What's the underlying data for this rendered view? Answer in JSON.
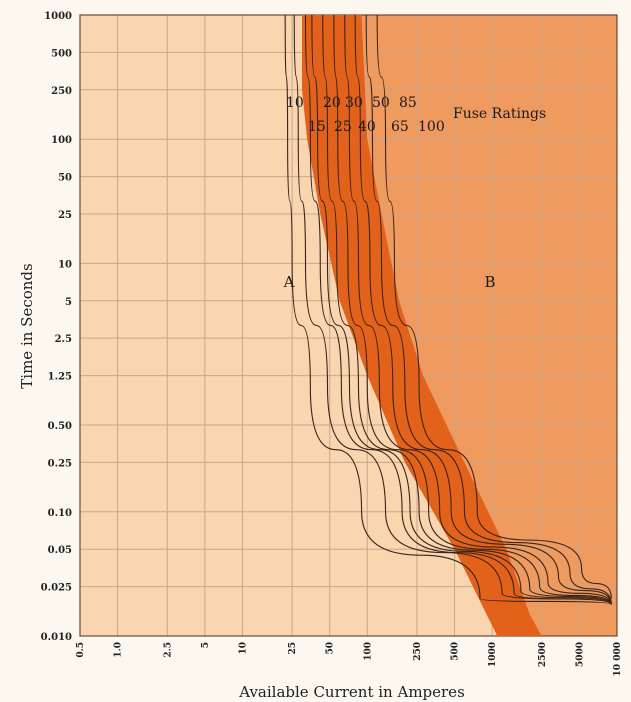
{
  "chart_data": {
    "type": "line",
    "title": "",
    "xlabel": "Available Current in Amperes",
    "ylabel": "Time in Seconds",
    "x_scale": "log",
    "y_scale": "log",
    "xlim": [
      0.5,
      10000
    ],
    "ylim": [
      0.01,
      1000
    ],
    "grid": true,
    "x_ticks": [
      {
        "value": 0.5,
        "label": "0.5"
      },
      {
        "value": 1,
        "label": "1.0"
      },
      {
        "value": 2.5,
        "label": "2.5"
      },
      {
        "value": 5,
        "label": "5"
      },
      {
        "value": 10,
        "label": "10"
      },
      {
        "value": 25,
        "label": "25"
      },
      {
        "value": 50,
        "label": "50"
      },
      {
        "value": 100,
        "label": "100"
      },
      {
        "value": 250,
        "label": "250"
      },
      {
        "value": 500,
        "label": "500"
      },
      {
        "value": 1000,
        "label": "1000"
      },
      {
        "value": 2500,
        "label": "2500"
      },
      {
        "value": 5000,
        "label": "5000"
      },
      {
        "value": 10000,
        "label": "10 000"
      }
    ],
    "y_ticks": [
      {
        "value": 1000,
        "label": "1000"
      },
      {
        "value": 500,
        "label": "500"
      },
      {
        "value": 250,
        "label": "250"
      },
      {
        "value": 100,
        "label": "100"
      },
      {
        "value": 50,
        "label": "50"
      },
      {
        "value": 25,
        "label": "25"
      },
      {
        "value": 10,
        "label": "10"
      },
      {
        "value": 5,
        "label": "5"
      },
      {
        "value": 2.5,
        "label": "2.5"
      },
      {
        "value": 1.25,
        "label": "1.25"
      },
      {
        "value": 0.5,
        "label": "0.50"
      },
      {
        "value": 0.25,
        "label": "0.25"
      },
      {
        "value": 0.1,
        "label": "0.10"
      },
      {
        "value": 0.05,
        "label": "0.05"
      },
      {
        "value": 0.025,
        "label": "0.025"
      },
      {
        "value": 0.01,
        "label": "0.010"
      }
    ],
    "region_labels": [
      "A",
      "B"
    ],
    "legend_title": "Fuse Ratings",
    "rating_labels_top": [
      "10",
      "20",
      "30",
      "50",
      "85"
    ],
    "rating_labels_bottom": [
      "15",
      "25",
      "40",
      "65",
      "100"
    ],
    "series": [
      {
        "rating": "10",
        "points": [
          [
            22,
            1000
          ],
          [
            23,
            100
          ],
          [
            25,
            10
          ],
          [
            35,
            1
          ],
          [
            90,
            0.1
          ],
          [
            800,
            0.02
          ],
          [
            9000,
            0.018
          ]
        ]
      },
      {
        "rating": "15",
        "points": [
          [
            26,
            1000
          ],
          [
            28,
            100
          ],
          [
            32,
            10
          ],
          [
            48,
            1
          ],
          [
            140,
            0.1
          ],
          [
            1200,
            0.022
          ],
          [
            9000,
            0.018
          ]
        ]
      },
      {
        "rating": "20",
        "points": [
          [
            32,
            1000
          ],
          [
            35,
            100
          ],
          [
            42,
            10
          ],
          [
            62,
            1
          ],
          [
            190,
            0.1
          ],
          [
            1500,
            0.022
          ],
          [
            9000,
            0.018
          ]
        ]
      },
      {
        "rating": "25",
        "points": [
          [
            36,
            1000
          ],
          [
            40,
            100
          ],
          [
            48,
            10
          ],
          [
            72,
            1
          ],
          [
            220,
            0.1
          ],
          [
            1700,
            0.023
          ],
          [
            9000,
            0.018
          ]
        ]
      },
      {
        "rating": "30",
        "points": [
          [
            44,
            1000
          ],
          [
            48,
            100
          ],
          [
            57,
            10
          ],
          [
            85,
            1
          ],
          [
            260,
            0.1
          ],
          [
            2000,
            0.024
          ],
          [
            9000,
            0.018
          ]
        ]
      },
      {
        "rating": "40",
        "points": [
          [
            54,
            1000
          ],
          [
            58,
            100
          ],
          [
            70,
            10
          ],
          [
            100,
            1
          ],
          [
            310,
            0.1
          ],
          [
            2400,
            0.025
          ],
          [
            9000,
            0.018
          ]
        ]
      },
      {
        "rating": "50",
        "points": [
          [
            66,
            1000
          ],
          [
            72,
            100
          ],
          [
            85,
            10
          ],
          [
            125,
            1
          ],
          [
            380,
            0.1
          ],
          [
            2800,
            0.027
          ],
          [
            9000,
            0.018
          ]
        ]
      },
      {
        "rating": "65",
        "points": [
          [
            80,
            1000
          ],
          [
            88,
            100
          ],
          [
            105,
            10
          ],
          [
            160,
            1
          ],
          [
            470,
            0.1
          ],
          [
            3400,
            0.03
          ],
          [
            9000,
            0.018
          ]
        ]
      },
      {
        "rating": "85",
        "points": [
          [
            98,
            1000
          ],
          [
            110,
            100
          ],
          [
            130,
            10
          ],
          [
            200,
            1
          ],
          [
            600,
            0.1
          ],
          [
            4200,
            0.032
          ],
          [
            9000,
            0.018
          ]
        ]
      },
      {
        "rating": "100",
        "points": [
          [
            120,
            1000
          ],
          [
            140,
            100
          ],
          [
            165,
            10
          ],
          [
            260,
            1
          ],
          [
            760,
            0.1
          ],
          [
            5200,
            0.035
          ],
          [
            9000,
            0.02
          ]
        ]
      }
    ],
    "shaded_band": {
      "left_edge": [
        [
          30,
          1000
        ],
        [
          30,
          250
        ],
        [
          33,
          100
        ],
        [
          42,
          25
        ],
        [
          60,
          5
        ],
        [
          100,
          1.25
        ],
        [
          200,
          0.25
        ],
        [
          500,
          0.05
        ],
        [
          900,
          0.015
        ],
        [
          1100,
          0.01
        ]
      ],
      "right_edge": [
        [
          90,
          1000
        ],
        [
          96,
          250
        ],
        [
          100,
          100
        ],
        [
          130,
          25
        ],
        [
          180,
          5
        ],
        [
          280,
          1.25
        ],
        [
          600,
          0.25
        ],
        [
          1300,
          0.05
        ],
        [
          2000,
          0.015
        ],
        [
          2500,
          0.01
        ]
      ]
    }
  }
}
